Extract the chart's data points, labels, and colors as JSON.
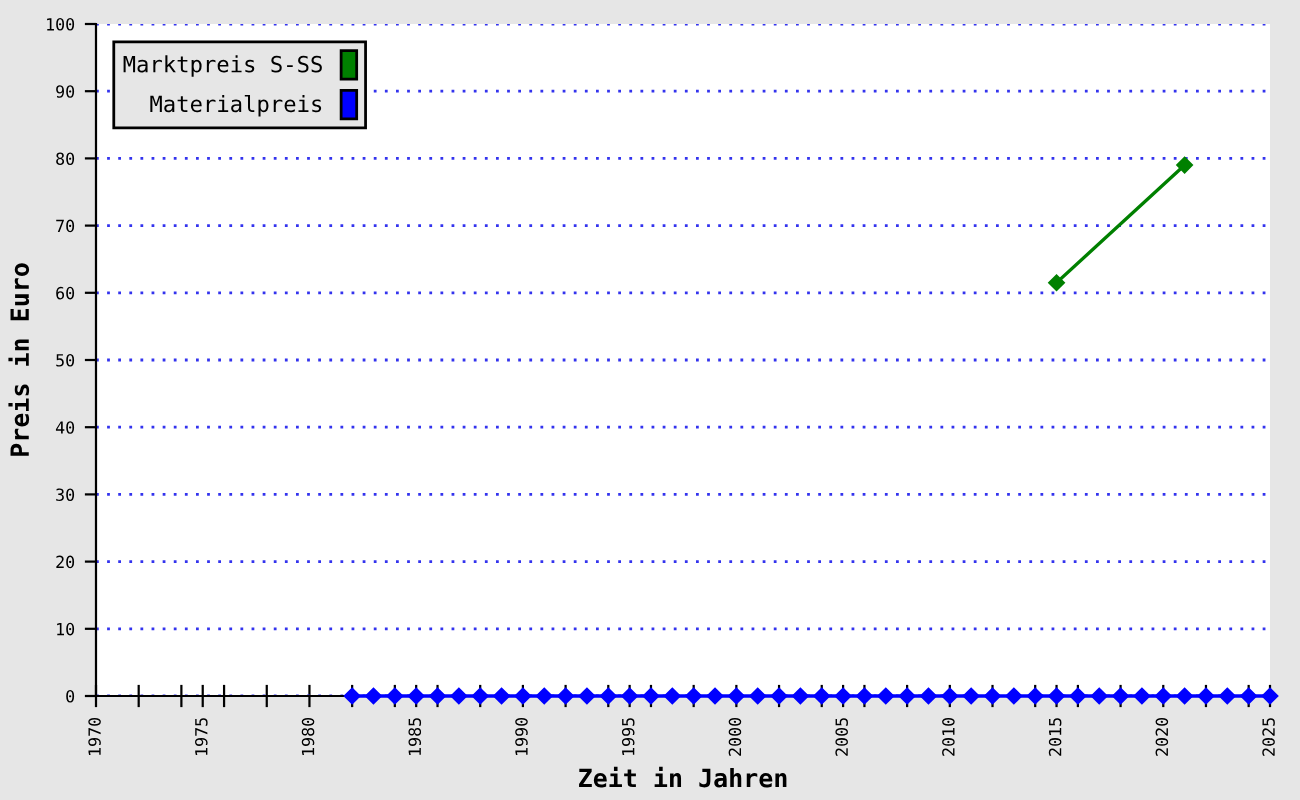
{
  "chart_data": {
    "type": "line",
    "xlabel": "Zeit in Jahren",
    "ylabel": "Preis in Euro",
    "xlim": [
      1970,
      2025
    ],
    "ylim": [
      0,
      100
    ],
    "xticks": [
      1970,
      {
        "value": 1972,
        "label": null
      },
      {
        "value": 1974,
        "label": null
      },
      1975,
      {
        "value": 1976,
        "label": null
      },
      {
        "value": 1978,
        "label": null
      },
      1980,
      {
        "value": 1982,
        "label": null
      },
      {
        "value": 1984,
        "label": null
      },
      1985,
      {
        "value": 1986,
        "label": null
      },
      {
        "value": 1988,
        "label": null
      },
      1990,
      {
        "value": 1992,
        "label": null
      },
      {
        "value": 1994,
        "label": null
      },
      1995,
      {
        "value": 1996,
        "label": null
      },
      {
        "value": 1998,
        "label": null
      },
      2000,
      {
        "value": 2002,
        "label": null
      },
      {
        "value": 2004,
        "label": null
      },
      2005,
      {
        "value": 2006,
        "label": null
      },
      {
        "value": 2008,
        "label": null
      },
      2010,
      {
        "value": 2012,
        "label": null
      },
      {
        "value": 2014,
        "label": null
      },
      2015,
      {
        "value": 2016,
        "label": null
      },
      {
        "value": 2018,
        "label": null
      },
      2020,
      {
        "value": 2022,
        "label": null
      },
      {
        "value": 2024,
        "label": null
      },
      2025
    ],
    "yticks": [
      0,
      10,
      20,
      30,
      40,
      50,
      60,
      70,
      80,
      90,
      100
    ],
    "grid": "y",
    "legend": "top left",
    "marker": "diamond",
    "line_style": "solid",
    "series": [
      {
        "name": "Marktpreis S-SS",
        "color": "#008000",
        "x": [
          2015,
          2021
        ],
        "values": [
          61.5,
          79
        ]
      },
      {
        "name": "Materialpreis",
        "color": "#0000ff",
        "x": [
          1982,
          1983,
          1984,
          1985,
          1986,
          1987,
          1988,
          1989,
          1990,
          1991,
          1992,
          1993,
          1994,
          1995,
          1996,
          1997,
          1998,
          1999,
          2000,
          2001,
          2002,
          2003,
          2004,
          2005,
          2006,
          2007,
          2008,
          2009,
          2010,
          2011,
          2012,
          2013,
          2014,
          2015,
          2016,
          2017,
          2018,
          2019,
          2020,
          2021,
          2022,
          2023,
          2024,
          2025
        ],
        "values": [
          0,
          0,
          0,
          0,
          0,
          0,
          0,
          0,
          0,
          0,
          0,
          0,
          0,
          0,
          0,
          0,
          0,
          0,
          0,
          0,
          0,
          0,
          0,
          0,
          0,
          0,
          0,
          0,
          0,
          0,
          0,
          0,
          0,
          0,
          0,
          0,
          0,
          0,
          0,
          0,
          0,
          0,
          0,
          0
        ]
      }
    ]
  }
}
